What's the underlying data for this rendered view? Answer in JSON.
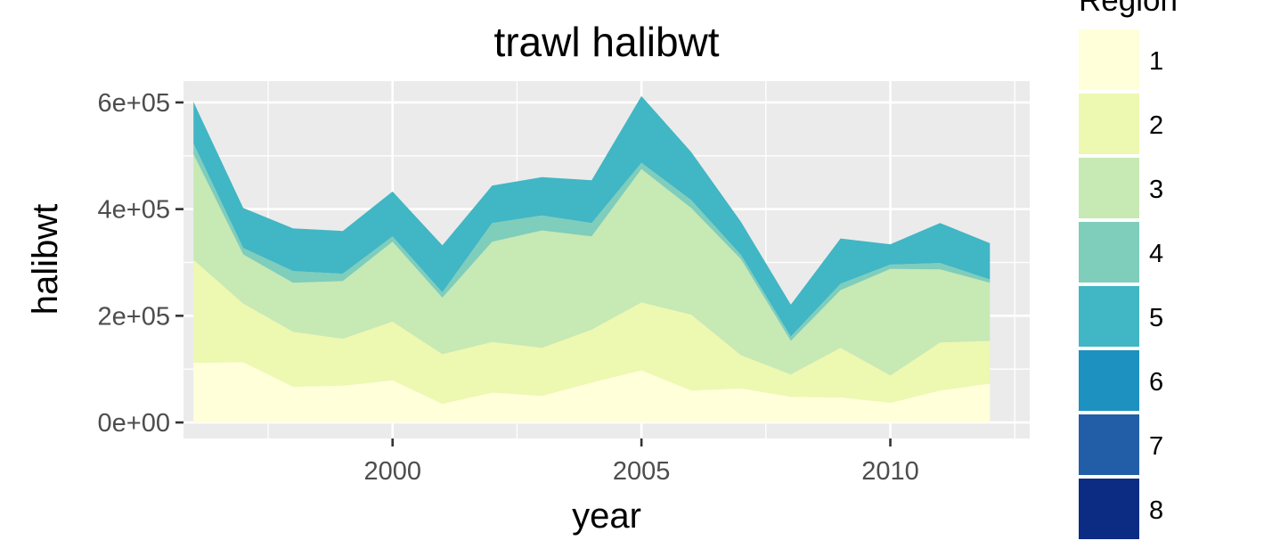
{
  "chart_data": {
    "type": "area",
    "stacked": true,
    "title": "trawl halibwt",
    "xlabel": "year",
    "ylabel": "halibwt",
    "xlim": [
      1995.8,
      2012.8
    ],
    "ylim": [
      -30000,
      640000
    ],
    "x_ticks": [
      {
        "value": 2000,
        "label": "2000"
      },
      {
        "value": 2005,
        "label": "2005"
      },
      {
        "value": 2010,
        "label": "2010"
      }
    ],
    "x_minor_ticks": [
      1997.5,
      2002.5,
      2007.5,
      2012.5
    ],
    "y_ticks": [
      {
        "value": 0,
        "label": "0e+00"
      },
      {
        "value": 200000,
        "label": "2e+05"
      },
      {
        "value": 400000,
        "label": "4e+05"
      },
      {
        "value": 600000,
        "label": "6e+05"
      }
    ],
    "y_minor_ticks": [
      100000,
      300000,
      500000
    ],
    "grid": true,
    "panel_background": "#ebebeb",
    "legend": {
      "title": "Region",
      "position": "right"
    },
    "x": [
      1996,
      1997,
      1998,
      1999,
      2000,
      2001,
      2002,
      2003,
      2004,
      2005,
      2006,
      2007,
      2008,
      2009,
      2010,
      2011,
      2012
    ],
    "series": [
      {
        "name": "1",
        "color": "#ffffd9",
        "values": [
          112000,
          113000,
          67000,
          69000,
          79000,
          35000,
          56000,
          50000,
          75000,
          98000,
          60000,
          64000,
          48000,
          47000,
          37000,
          60000,
          73000
        ]
      },
      {
        "name": "2",
        "color": "#edf8b1",
        "values": [
          193000,
          110000,
          103000,
          88000,
          110000,
          93000,
          95000,
          90000,
          99000,
          127000,
          142000,
          62000,
          42000,
          93000,
          51000,
          90000,
          80000
        ]
      },
      {
        "name": "3",
        "color": "#c7e9b4",
        "values": [
          198000,
          92000,
          92000,
          108000,
          150000,
          106000,
          188000,
          220000,
          175000,
          250000,
          200000,
          180000,
          63000,
          108000,
          200000,
          137000,
          109000
        ]
      },
      {
        "name": "4",
        "color": "#7fcdbb",
        "values": [
          20000,
          12000,
          22000,
          14000,
          10000,
          10000,
          35000,
          28000,
          25000,
          12000,
          15000,
          8000,
          8000,
          12000,
          8000,
          12000,
          6000
        ]
      },
      {
        "name": "5",
        "color": "#41b6c4",
        "values": [
          78000,
          75000,
          80000,
          80000,
          84000,
          88000,
          70000,
          72000,
          80000,
          125000,
          90000,
          62000,
          60000,
          85000,
          38000,
          75000,
          68000
        ]
      },
      {
        "name": "6",
        "color": "#1d91c0",
        "values": [
          0,
          0,
          0,
          0,
          0,
          0,
          0,
          0,
          0,
          0,
          0,
          0,
          0,
          0,
          0,
          0,
          0
        ]
      },
      {
        "name": "7",
        "color": "#225ea8",
        "values": [
          0,
          0,
          0,
          0,
          0,
          0,
          0,
          0,
          0,
          0,
          0,
          0,
          0,
          0,
          0,
          0,
          0
        ]
      },
      {
        "name": "8",
        "color": "#0c2c84",
        "values": [
          0,
          0,
          0,
          0,
          0,
          0,
          0,
          0,
          0,
          0,
          0,
          0,
          0,
          0,
          0,
          0,
          0
        ]
      }
    ]
  }
}
